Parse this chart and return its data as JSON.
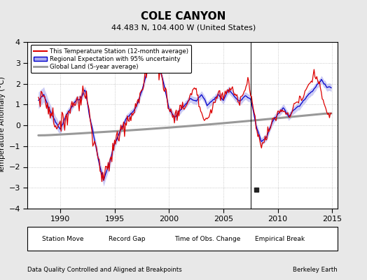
{
  "title": "COLE CANYON",
  "subtitle": "44.483 N, 104.400 W (United States)",
  "footer_left": "Data Quality Controlled and Aligned at Breakpoints",
  "footer_right": "Berkeley Earth",
  "ylabel": "Temperature Anomaly (°C)",
  "xlim": [
    1987.0,
    2015.5
  ],
  "ylim": [
    -4,
    4
  ],
  "yticks": [
    -4,
    -3,
    -2,
    -1,
    0,
    1,
    2,
    3,
    4
  ],
  "xticks": [
    1990,
    1995,
    2000,
    2005,
    2010,
    2015
  ],
  "background_color": "#e8e8e8",
  "plot_bg_color": "#ffffff",
  "red_line_color": "#dd0000",
  "blue_line_color": "#0000cc",
  "blue_band_color": "#aaaaee",
  "gray_line_color": "#999999",
  "empirical_break_x": 2008.0,
  "empirical_break_y": -3.1,
  "vertical_line_x": 2007.5
}
